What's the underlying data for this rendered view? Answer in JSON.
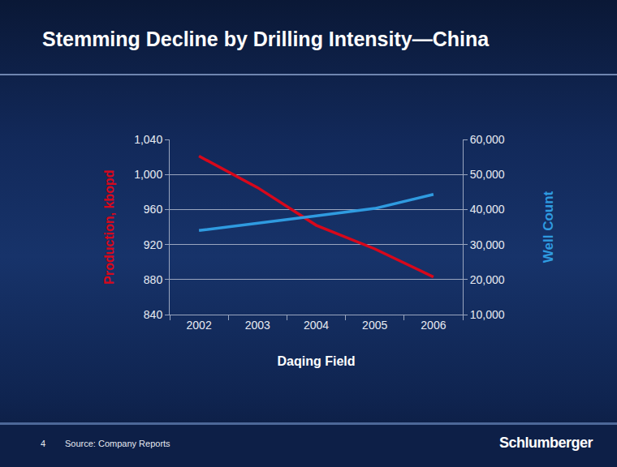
{
  "chart_data": {
    "type": "line",
    "title": "Stemming Decline by Drilling Intensity—China",
    "x_label": "Daqing Field",
    "y_label": "Production, kbopd",
    "y2_label": "Well Count",
    "categories": [
      "2002",
      "2003",
      "2004",
      "2005",
      "2006"
    ],
    "series": [
      {
        "name": "Production, kbopd",
        "color": "#d7081b",
        "values": [
          1021,
          985,
          942,
          915,
          883
        ]
      },
      {
        "name": "Well Count",
        "color": "#2f9be0",
        "axis": "y2",
        "values": [
          34000,
          36200,
          38200,
          40300,
          44300
        ]
      }
    ],
    "ylim": [
      840,
      1040
    ],
    "yticks": [
      840,
      880,
      920,
      960,
      {
        "value": 1000,
        "label": "1,000"
      },
      {
        "value": 1040,
        "label": "1,040"
      }
    ],
    "y2lim": [
      10000,
      60000
    ],
    "y2ticks": [
      {
        "value": 10000,
        "label": "10,000"
      },
      {
        "value": 20000,
        "label": "20,000"
      },
      {
        "value": 30000,
        "label": "30,000"
      },
      {
        "value": 40000,
        "label": "40,000"
      },
      {
        "value": 50000,
        "label": "50,000"
      },
      {
        "value": 60000,
        "label": "60,000"
      }
    ],
    "grid": true
  },
  "slide": {
    "page": 4,
    "source": "Source: Company Reports",
    "logo": "Schlumberger"
  }
}
